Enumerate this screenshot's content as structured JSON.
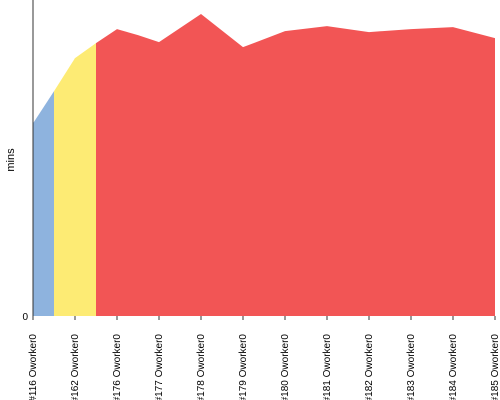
{
  "chart_data": {
    "type": "area",
    "title": "",
    "xlabel": "",
    "ylabel": "mins",
    "ylim": [
      0,
      315
    ],
    "y_ticks": [
      {
        "value": 0,
        "label": "0"
      }
    ],
    "x_tick_labels": [
      "#116 Oworker0",
      "#162 Oworker0",
      "#176 Oworker0",
      "#177 Oworker0",
      "#178 Oworker0",
      "#179 Oworker0",
      "#180 Oworker0",
      "#181 Oworker0",
      "#182 Oworker0",
      "#183 Oworker0",
      "#184 Oworker0",
      "#185 Oworker0"
    ],
    "points": [
      {
        "x": 0.0,
        "y": 192
      },
      {
        "x": 0.5,
        "y": 224
      },
      {
        "x": 1.0,
        "y": 257
      },
      {
        "x": 1.5,
        "y": 272
      },
      {
        "x": 2.0,
        "y": 286
      },
      {
        "x": 2.5,
        "y": 280
      },
      {
        "x": 3.0,
        "y": 273
      },
      {
        "x": 4.0,
        "y": 301
      },
      {
        "x": 5.0,
        "y": 268
      },
      {
        "x": 6.0,
        "y": 284
      },
      {
        "x": 7.0,
        "y": 289
      },
      {
        "x": 8.0,
        "y": 283
      },
      {
        "x": 9.0,
        "y": 286
      },
      {
        "x": 10.0,
        "y": 288
      },
      {
        "x": 11.0,
        "y": 277
      }
    ],
    "regions": [
      {
        "color": "#8eb3de",
        "from": 0.0,
        "to": 0.5
      },
      {
        "color": "#fdeb74",
        "from": 0.5,
        "to": 1.5
      },
      {
        "color": "#f25555",
        "from": 1.5,
        "to": 11.0
      }
    ],
    "axis_color": "#333333"
  }
}
